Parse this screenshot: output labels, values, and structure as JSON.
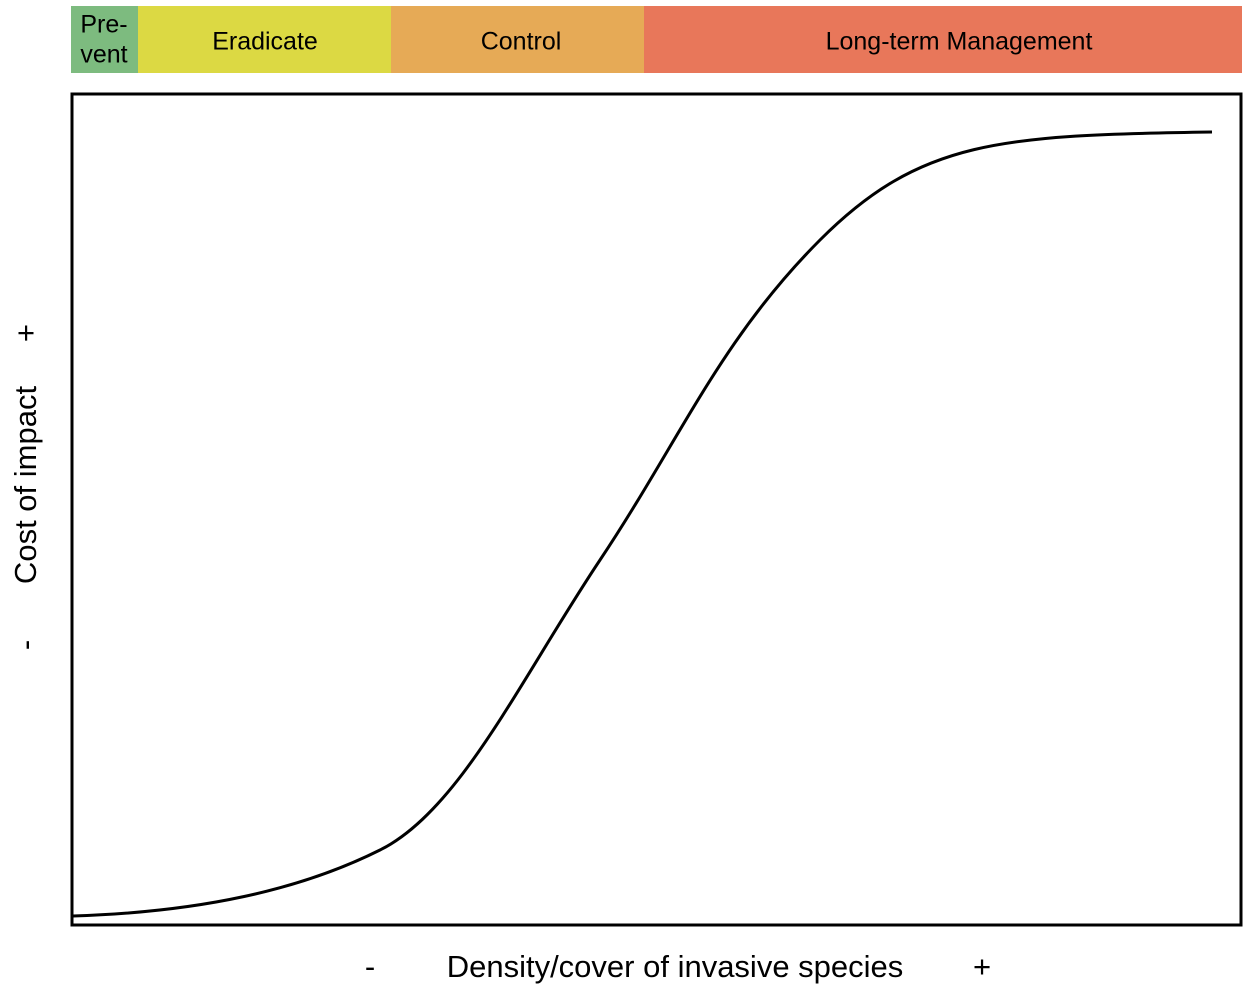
{
  "phases": [
    {
      "lines": [
        "Pre-",
        "vent"
      ]
    },
    {
      "lines": [
        "Eradicate"
      ]
    },
    {
      "lines": [
        "Control"
      ]
    },
    {
      "lines": [
        "Long-term Management"
      ]
    }
  ],
  "y_axis": {
    "minus": "-",
    "label": "Cost of impact",
    "plus": "+"
  },
  "x_axis": {
    "minus": "-",
    "label": "Density/cover of invasive species",
    "plus": "+"
  }
}
